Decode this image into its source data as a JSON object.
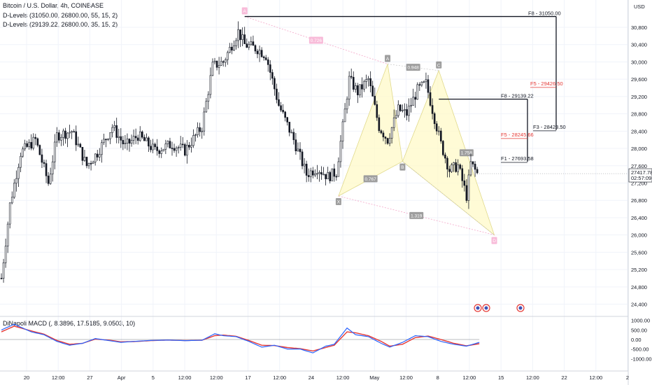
{
  "legend": {
    "title": "Bitcoin / U.S. Dollar, 4h, COINBASE",
    "dlevels1": "D-Levels (31050.00, 26800.00, 55, 15, 2)",
    "dlevels2": "D-Levels (29139.22, 26800.00, 35, 15, 2)",
    "macd": "DiNapoli MACD (, 8.3896, 17.5185, 9.0503, 10)"
  },
  "axis": {
    "currency": "USD",
    "last_price": "27417.78",
    "countdown": "02:57:09"
  },
  "chart_data": {
    "type": "candlestick",
    "symbol": "BTCUSD",
    "timeframe": "4h",
    "exchange": "COINBASE",
    "x_tick_labels": [
      "20",
      "12:00",
      "27",
      "Apr",
      "5",
      "12:00",
      "12:00",
      "17",
      "12:00",
      "24",
      "12:00",
      "May",
      "12:00",
      "8",
      "12:00",
      "15",
      "12:00",
      "22",
      "12:00",
      "2"
    ],
    "y_ticks": [
      24400,
      24800,
      25200,
      25600,
      26000,
      26400,
      26800,
      27200,
      27600,
      28000,
      28400,
      28800,
      29200,
      29600,
      30000,
      30400,
      30800
    ],
    "ylim": [
      24150,
      31350
    ],
    "price_path": [
      [
        0,
        25000
      ],
      [
        4,
        26700
      ],
      [
        9,
        27900
      ],
      [
        16,
        28200
      ],
      [
        22,
        27200
      ],
      [
        26,
        28300
      ],
      [
        33,
        28400
      ],
      [
        40,
        27600
      ],
      [
        45,
        27900
      ],
      [
        52,
        28500
      ],
      [
        58,
        28050
      ],
      [
        64,
        28300
      ],
      [
        72,
        27950
      ],
      [
        80,
        28100
      ],
      [
        86,
        27950
      ],
      [
        94,
        28500
      ],
      [
        99,
        29900
      ],
      [
        104,
        30000
      ],
      [
        111,
        30700
      ],
      [
        114,
        30400
      ],
      [
        120,
        30300
      ],
      [
        124,
        30150
      ],
      [
        130,
        29000
      ],
      [
        137,
        28200
      ],
      [
        143,
        27400
      ],
      [
        148,
        27550
      ],
      [
        153,
        27350
      ],
      [
        157,
        27450
      ],
      [
        160,
        28500
      ],
      [
        163,
        29600
      ],
      [
        167,
        29300
      ],
      [
        172,
        29600
      ],
      [
        177,
        28500
      ],
      [
        181,
        28200
      ],
      [
        186,
        28900
      ],
      [
        190,
        28800
      ],
      [
        195,
        29350
      ],
      [
        199,
        29500
      ],
      [
        202,
        28900
      ],
      [
        206,
        28100
      ],
      [
        210,
        27500
      ],
      [
        214,
        27600
      ],
      [
        218,
        26900
      ],
      [
        220,
        27650
      ],
      [
        223,
        27418
      ]
    ],
    "last_price": 27417.78,
    "harmonic_pattern": {
      "points": [
        {
          "label": "X",
          "price": 26900
        },
        {
          "label": "A",
          "price": 29950
        },
        {
          "label": "B",
          "price": 27700
        },
        {
          "label": "C",
          "price": 29800
        },
        {
          "label": "D",
          "price": 26000
        },
        {
          "label": "A",
          "price": 31050
        }
      ],
      "ratios": [
        "0.726",
        "0.948",
        "0.767",
        "1.758",
        "1.319"
      ]
    },
    "dinapoli_levels": [
      {
        "label": "F8 - 31050.00",
        "price": 31050.0,
        "color": "#131722"
      },
      {
        "label": "F5 - 29426.50",
        "price": 29426.5,
        "color": "#e53935"
      },
      {
        "label": "F3 - 28423.50",
        "price": 28423.5,
        "color": "#131722"
      },
      {
        "label": "F8 - 29139.22",
        "price": 29139.22,
        "color": "#131722"
      },
      {
        "label": "F5 - 28245.66",
        "price": 28245.66,
        "color": "#e53935"
      },
      {
        "label": "F1 - 27693.58",
        "price": 27693.58,
        "color": "#131722"
      }
    ],
    "macd": {
      "y_ticks": [
        "1000.00",
        "500.00",
        "0.00",
        "-500.00",
        "-1000.00"
      ],
      "ylim": [
        -1100,
        1100
      ],
      "fast_path": [
        [
          0,
          500
        ],
        [
          6,
          800
        ],
        [
          14,
          400
        ],
        [
          20,
          250
        ],
        [
          26,
          -100
        ],
        [
          32,
          -300
        ],
        [
          38,
          -200
        ],
        [
          44,
          50
        ],
        [
          50,
          -50
        ],
        [
          56,
          -150
        ],
        [
          62,
          -100
        ],
        [
          70,
          -50
        ],
        [
          78,
          -30
        ],
        [
          86,
          -60
        ],
        [
          94,
          -40
        ],
        [
          100,
          300
        ],
        [
          104,
          200
        ],
        [
          110,
          150
        ],
        [
          116,
          -100
        ],
        [
          122,
          -400
        ],
        [
          128,
          -300
        ],
        [
          134,
          -500
        ],
        [
          140,
          -500
        ],
        [
          146,
          -700
        ],
        [
          152,
          -350
        ],
        [
          156,
          -250
        ],
        [
          162,
          600
        ],
        [
          166,
          250
        ],
        [
          172,
          150
        ],
        [
          178,
          -200
        ],
        [
          182,
          -400
        ],
        [
          188,
          -150
        ],
        [
          194,
          200
        ],
        [
          200,
          150
        ],
        [
          206,
          -100
        ],
        [
          212,
          -250
        ],
        [
          218,
          -350
        ],
        [
          224,
          -150
        ]
      ],
      "slow_path": [
        [
          0,
          400
        ],
        [
          6,
          700
        ],
        [
          14,
          450
        ],
        [
          20,
          280
        ],
        [
          26,
          -50
        ],
        [
          32,
          -250
        ],
        [
          38,
          -200
        ],
        [
          44,
          20
        ],
        [
          50,
          -30
        ],
        [
          56,
          -120
        ],
        [
          62,
          -110
        ],
        [
          70,
          -60
        ],
        [
          78,
          -30
        ],
        [
          86,
          -55
        ],
        [
          94,
          -40
        ],
        [
          100,
          200
        ],
        [
          104,
          230
        ],
        [
          110,
          170
        ],
        [
          116,
          -50
        ],
        [
          122,
          -300
        ],
        [
          128,
          -320
        ],
        [
          134,
          -420
        ],
        [
          140,
          -480
        ],
        [
          146,
          -600
        ],
        [
          152,
          -420
        ],
        [
          156,
          -300
        ],
        [
          162,
          400
        ],
        [
          166,
          350
        ],
        [
          172,
          200
        ],
        [
          178,
          -100
        ],
        [
          182,
          -350
        ],
        [
          188,
          -250
        ],
        [
          194,
          100
        ],
        [
          200,
          180
        ],
        [
          206,
          0
        ],
        [
          212,
          -200
        ],
        [
          218,
          -330
        ],
        [
          224,
          -220
        ]
      ],
      "fast_color": "#2962ff",
      "slow_color": "#e53935",
      "x_end_index": 224
    },
    "events_count": 3
  }
}
